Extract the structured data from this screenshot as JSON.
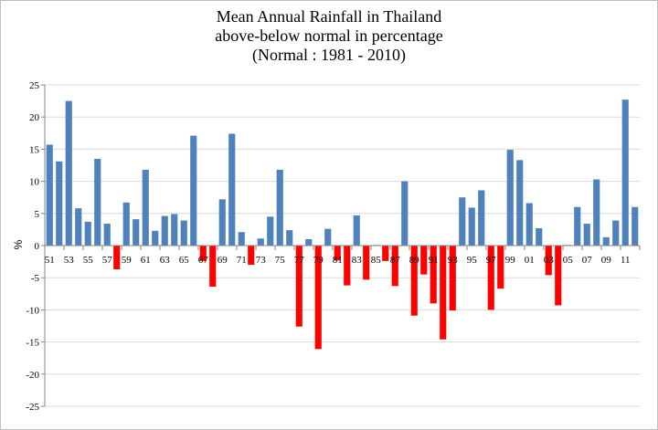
{
  "chart_data": {
    "type": "bar",
    "title_lines": [
      "Mean Annual Rainfall in Thailand",
      "above-below normal in percentage",
      "(Normal : 1981 - 2010)"
    ],
    "xlabel": "",
    "ylabel": "%",
    "ylim": [
      -25,
      25
    ],
    "yticks": [
      -25,
      -20,
      -15,
      -10,
      -5,
      0,
      5,
      10,
      15,
      20,
      25
    ],
    "grid": "horizontal",
    "legend": "none",
    "colors": {
      "above": "#4f81bd",
      "below": "#ff0000",
      "grid": "#d9d9d9",
      "axis": "#868686"
    },
    "categories": [
      "51",
      "52",
      "53",
      "54",
      "55",
      "56",
      "57",
      "58",
      "59",
      "60",
      "61",
      "62",
      "63",
      "64",
      "65",
      "66",
      "67",
      "68",
      "69",
      "70",
      "71",
      "72",
      "73",
      "74",
      "75",
      "76",
      "77",
      "78",
      "79",
      "80",
      "81",
      "82",
      "83",
      "84",
      "85",
      "86",
      "87",
      "88",
      "89",
      "90",
      "91",
      "92",
      "93",
      "94",
      "95",
      "96",
      "97",
      "98",
      "99",
      "00",
      "01",
      "02",
      "03",
      "04",
      "05",
      "06",
      "07",
      "08",
      "09",
      "10",
      "11",
      "12"
    ],
    "tick_labels": [
      "51",
      "53",
      "55",
      "57",
      "59",
      "61",
      "63",
      "65",
      "67",
      "69",
      "71",
      "73",
      "75",
      "77",
      "79",
      "81",
      "83",
      "85",
      "87",
      "89",
      "91",
      "93",
      "95",
      "97",
      "99",
      "01",
      "03",
      "05",
      "07",
      "09",
      "11"
    ],
    "values": [
      15.7,
      13.1,
      22.5,
      5.8,
      3.7,
      13.5,
      3.4,
      -3.7,
      6.7,
      4.1,
      11.8,
      2.3,
      4.6,
      4.9,
      3.9,
      17.1,
      -2.4,
      -6.4,
      7.2,
      17.4,
      2.1,
      -3.0,
      1.1,
      4.5,
      11.8,
      2.4,
      -12.6,
      1.0,
      -16.1,
      2.6,
      -2.3,
      -6.2,
      4.7,
      -5.3,
      0.1,
      -2.4,
      -6.3,
      10.0,
      -10.9,
      -4.5,
      -9.0,
      -14.6,
      -10.1,
      7.5,
      5.9,
      8.6,
      -10.0,
      -6.7,
      14.9,
      13.3,
      6.6,
      2.7,
      -4.6,
      -9.3,
      0.1,
      6.0,
      3.4,
      10.3,
      1.3,
      3.9,
      22.7,
      6.0
    ]
  }
}
